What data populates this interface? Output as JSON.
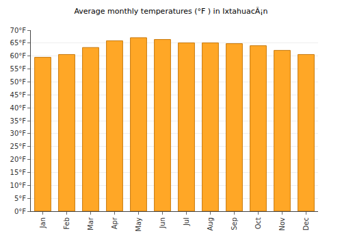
{
  "chart_data": {
    "type": "bar",
    "title": "Average monthly temperatures (°F ) in IxtahuacÃ¡n",
    "categories": [
      "Jan",
      "Feb",
      "Mar",
      "Apr",
      "May",
      "Jun",
      "Jul",
      "Aug",
      "Sep",
      "Oct",
      "Nov",
      "Dec"
    ],
    "values": [
      59.5,
      60.6,
      63.3,
      65.9,
      67.1,
      66.4,
      65.1,
      65.1,
      64.8,
      64.0,
      62.2,
      60.6
    ],
    "color": "#ffa726",
    "ylim": [
      0,
      70
    ],
    "yticks": [
      {
        "value": 0,
        "label": "0°F"
      },
      {
        "value": 5,
        "label": "5°F"
      },
      {
        "value": 10,
        "label": "10°F"
      },
      {
        "value": 15,
        "label": "15°F"
      },
      {
        "value": 20,
        "label": "20°F"
      },
      {
        "value": 25,
        "label": "25°F"
      },
      {
        "value": 30,
        "label": "30°F"
      },
      {
        "value": 35,
        "label": "35°F"
      },
      {
        "value": 40,
        "label": "40°F"
      },
      {
        "value": 45,
        "label": "45°F"
      },
      {
        "value": 50,
        "label": "50°F"
      },
      {
        "value": 55,
        "label": "55°F"
      },
      {
        "value": 60,
        "label": "60°F"
      },
      {
        "value": 65,
        "label": "65°F"
      },
      {
        "value": 70,
        "label": "70°F"
      }
    ],
    "grid": true
  }
}
